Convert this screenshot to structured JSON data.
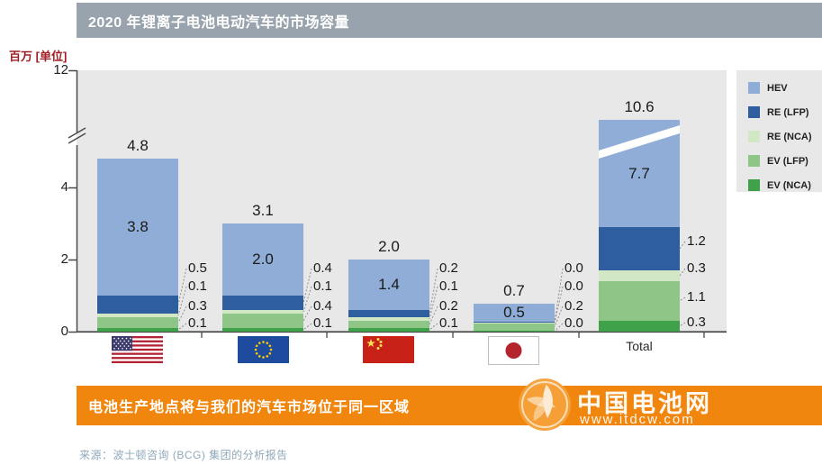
{
  "title": "2020 年锂离子电池电动汽车的市场容量",
  "y_axis": {
    "label": "百万 [单位]",
    "ticks": [
      "12",
      "4",
      "2",
      "0"
    ],
    "has_break": true
  },
  "x_axis": {
    "total_label": "Total"
  },
  "legend": {
    "items": [
      {
        "label": "HEV",
        "color": "#8fadd6"
      },
      {
        "label": "RE (LFP)",
        "color": "#2e5e9e"
      },
      {
        "label": "RE (NCA)",
        "color": "#d2e8c4"
      },
      {
        "label": "EV (LFP)",
        "color": "#8ec687"
      },
      {
        "label": "EV (NCA)",
        "color": "#3fa149"
      }
    ]
  },
  "chart_data": {
    "type": "bar",
    "stacked": true,
    "title": "2020 年锂离子电池电动汽车的市场容量",
    "ylabel": "百万 [单位]",
    "ylim": [
      0,
      12
    ],
    "axis_break_between": [
      5,
      12
    ],
    "grid": false,
    "legend_position": "right",
    "categories": [
      "USA",
      "EU",
      "China",
      "Japan",
      "Total"
    ],
    "series": [
      {
        "name": "HEV",
        "color": "#8fadd6",
        "values": [
          3.8,
          2.0,
          1.4,
          0.5,
          7.7
        ]
      },
      {
        "name": "RE (LFP)",
        "color": "#2e5e9e",
        "values": [
          0.5,
          0.4,
          0.2,
          0.0,
          1.2
        ]
      },
      {
        "name": "RE (NCA)",
        "color": "#d2e8c4",
        "values": [
          0.1,
          0.1,
          0.1,
          0.0,
          0.3
        ]
      },
      {
        "name": "EV (LFP)",
        "color": "#8ec687",
        "values": [
          0.3,
          0.4,
          0.2,
          0.2,
          1.1
        ]
      },
      {
        "name": "EV (NCA)",
        "color": "#3fa149",
        "values": [
          0.1,
          0.1,
          0.1,
          0.0,
          0.3
        ]
      }
    ],
    "totals": [
      4.8,
      3.1,
      2.0,
      0.7,
      10.6
    ]
  },
  "footer": {
    "banner": "电池生产地点将与我们的汽车市场位于同一区域",
    "source": "来源：波士顿咨询 (BCG) 集团的分析报告"
  },
  "watermark": {
    "name": "中国电池网",
    "url": "www.itdcw.com"
  }
}
